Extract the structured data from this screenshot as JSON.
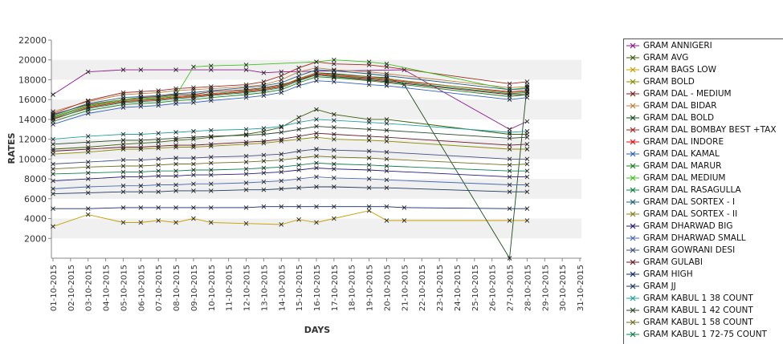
{
  "chart_data": {
    "type": "line",
    "title": "",
    "xlabel": "DAYS",
    "ylabel": "RATES",
    "ylim": [
      0,
      22000
    ],
    "y_ticks": [
      2000,
      4000,
      6000,
      8000,
      10000,
      12000,
      14000,
      16000,
      18000,
      20000,
      22000
    ],
    "y_tick_labels": [
      "2000",
      "4000",
      "6000",
      "8000",
      "10000",
      "12000",
      "14000",
      "16000",
      "18000",
      "20000",
      "22000"
    ],
    "grid": "alternating horizontal bands",
    "legend_position": "right",
    "categories": [
      "01-10-2015",
      "02-10-2015",
      "03-10-2015",
      "04-10-2015",
      "05-10-2015",
      "06-10-2015",
      "07-10-2015",
      "08-10-2015",
      "09-10-2015",
      "10-10-2015",
      "11-10-2015",
      "12-10-2015",
      "13-10-2015",
      "14-10-2015",
      "15-10-2015",
      "16-10-2015",
      "17-10-2015",
      "18-10-2015",
      "19-10-2015",
      "20-10-2015",
      "21-10-2015",
      "22-10-2015",
      "23-10-2015",
      "24-10-2015",
      "25-10-2015",
      "26-10-2015",
      "27-10-2015",
      "28-10-2015",
      "29-10-2015",
      "30-10-2015",
      "31-10-2015"
    ],
    "series": [
      {
        "name": "GRAM ANNIGERI",
        "color": "#8b1a8b",
        "values": [
          16500,
          null,
          18800,
          null,
          19000,
          19000,
          null,
          19000,
          null,
          19000,
          null,
          19000,
          18700,
          18800,
          null,
          null,
          null,
          null,
          null,
          null,
          19000,
          null,
          null,
          null,
          null,
          null,
          13000,
          13800,
          null,
          null,
          null
        ]
      },
      {
        "name": "GRAM AVG",
        "color": "#3a5f0b",
        "values": [
          11000,
          null,
          11200,
          null,
          11500,
          11600,
          11700,
          11900,
          12000,
          12200,
          null,
          12500,
          12800,
          13200,
          14200,
          15000,
          14500,
          null,
          14000,
          14000,
          null,
          null,
          null,
          null,
          null,
          null,
          12500,
          12500,
          null,
          null,
          null
        ]
      },
      {
        "name": "GRAM BAGS LOW",
        "color": "#c8a000",
        "values": [
          3200,
          null,
          4400,
          null,
          3600,
          3600,
          3800,
          3600,
          4000,
          3600,
          null,
          3500,
          null,
          3400,
          3900,
          3600,
          4000,
          null,
          4800,
          3800,
          3800,
          null,
          null,
          null,
          null,
          null,
          3800,
          3800,
          null,
          null,
          null
        ]
      },
      {
        "name": "GRAM BOLD",
        "color": "#8b8b00",
        "values": [
          10500,
          null,
          10700,
          null,
          11000,
          11000,
          11100,
          11200,
          11200,
          11300,
          null,
          11500,
          11600,
          11800,
          12000,
          12200,
          12000,
          null,
          11900,
          11800,
          null,
          null,
          null,
          null,
          null,
          null,
          11000,
          11000,
          null,
          null,
          null
        ]
      },
      {
        "name": "GRAM DAL - MEDIUM",
        "color": "#7a1f1f",
        "values": [
          14500,
          null,
          15500,
          null,
          16000,
          16200,
          16300,
          16500,
          16500,
          16800,
          null,
          17000,
          17200,
          17500,
          18000,
          18500,
          18300,
          null,
          18000,
          17800,
          null,
          null,
          null,
          null,
          null,
          null,
          16500,
          16500,
          null,
          null,
          null
        ]
      },
      {
        "name": "GRAM DAL BIDAR",
        "color": "#c08040",
        "values": [
          14800,
          null,
          15800,
          null,
          16500,
          16600,
          16700,
          16900,
          17000,
          17100,
          null,
          17300,
          17500,
          18000,
          18800,
          19200,
          19000,
          null,
          18800,
          18600,
          null,
          null,
          null,
          null,
          null,
          null,
          17200,
          17300,
          null,
          null,
          null
        ]
      },
      {
        "name": "GRAM DAL BOLD",
        "color": "#1a4d1a",
        "values": [
          14200,
          null,
          15300,
          null,
          15900,
          16000,
          16100,
          16300,
          16400,
          16600,
          null,
          16900,
          17100,
          17400,
          18100,
          18700,
          18600,
          null,
          18300,
          18200,
          17500,
          null,
          null,
          null,
          null,
          null,
          0,
          17500,
          null,
          null,
          null
        ]
      },
      {
        "name": "GRAM DAL BOMBAY BEST +TAX",
        "color": "#a0281e",
        "values": [
          14600,
          null,
          15900,
          null,
          16700,
          16800,
          16900,
          17100,
          17200,
          17300,
          null,
          17500,
          17800,
          18400,
          19200,
          19800,
          19600,
          null,
          19500,
          19300,
          null,
          null,
          null,
          null,
          null,
          null,
          17600,
          17800,
          null,
          null,
          null
        ]
      },
      {
        "name": "GRAM DAL INDORE",
        "color": "#e01010",
        "values": [
          14000,
          null,
          15200,
          null,
          15800,
          15900,
          16000,
          16200,
          16300,
          16500,
          null,
          16800,
          17000,
          17300,
          18000,
          18600,
          18400,
          null,
          18200,
          18000,
          null,
          null,
          null,
          null,
          null,
          null,
          16800,
          16900,
          null,
          null,
          null
        ]
      },
      {
        "name": "GRAM DAL KAMAL",
        "color": "#3060c0",
        "values": [
          13500,
          null,
          14600,
          null,
          15200,
          15300,
          15400,
          15600,
          15700,
          15900,
          null,
          16200,
          16400,
          16700,
          17400,
          17900,
          17800,
          null,
          17500,
          17400,
          null,
          null,
          null,
          null,
          null,
          null,
          16000,
          16200,
          null,
          null,
          null
        ]
      },
      {
        "name": "GRAM DAL MARUR",
        "color": "#208020",
        "values": [
          13800,
          null,
          14900,
          null,
          15500,
          15600,
          15700,
          15900,
          16000,
          16200,
          null,
          16500,
          16700,
          17000,
          17700,
          18300,
          18200,
          null,
          17900,
          17700,
          null,
          null,
          null,
          null,
          null,
          null,
          16300,
          16500,
          null,
          null,
          null
        ]
      },
      {
        "name": "GRAM DAL MEDIUM",
        "color": "#40c020",
        "values": [
          14300,
          null,
          15400,
          null,
          16000,
          16100,
          16200,
          16400,
          19300,
          19400,
          null,
          19500,
          null,
          null,
          null,
          19800,
          20000,
          null,
          19800,
          19600,
          null,
          null,
          null,
          null,
          null,
          null,
          17000,
          17200,
          null,
          null,
          null
        ]
      },
      {
        "name": "GRAM DAL RASAGULLA",
        "color": "#108040",
        "values": [
          14100,
          null,
          15100,
          null,
          15700,
          15800,
          15900,
          16100,
          16200,
          16400,
          null,
          16700,
          16900,
          17200,
          17900,
          18500,
          18300,
          null,
          18100,
          17900,
          null,
          null,
          null,
          null,
          null,
          null,
          16600,
          16700,
          null,
          null,
          null
        ]
      },
      {
        "name": "GRAM DAL SORTEX  - I",
        "color": "#206080",
        "values": [
          14400,
          null,
          15600,
          null,
          16200,
          16300,
          16400,
          16600,
          16700,
          16900,
          null,
          17200,
          17400,
          17700,
          18400,
          19000,
          18900,
          null,
          18600,
          18400,
          null,
          null,
          null,
          null,
          null,
          null,
          17000,
          17100,
          null,
          null,
          null
        ]
      },
      {
        "name": "GRAM DAL SORTEX - II",
        "color": "#808020",
        "values": [
          14200,
          null,
          15300,
          null,
          15900,
          16000,
          16100,
          16300,
          16400,
          16600,
          null,
          16900,
          17100,
          17400,
          18100,
          18700,
          18500,
          null,
          18300,
          18100,
          null,
          null,
          null,
          null,
          null,
          null,
          16700,
          16800,
          null,
          null,
          null
        ]
      },
      {
        "name": "GRAM DHARWAD BIG",
        "color": "#2a1a7a",
        "values": [
          7800,
          null,
          8000,
          null,
          8200,
          8200,
          8300,
          8300,
          8400,
          8400,
          null,
          8500,
          8600,
          8700,
          8900,
          9100,
          9000,
          null,
          8900,
          8800,
          null,
          null,
          null,
          null,
          null,
          null,
          8200,
          8200,
          null,
          null,
          null
        ]
      },
      {
        "name": "GRAM DHARWAD SMALL",
        "color": "#4a6ab0",
        "values": [
          7000,
          null,
          7200,
          null,
          7300,
          7300,
          7400,
          7400,
          7500,
          7500,
          null,
          7600,
          7700,
          7800,
          8000,
          8200,
          8100,
          null,
          8000,
          7900,
          null,
          null,
          null,
          null,
          null,
          null,
          7400,
          7400,
          null,
          null,
          null
        ]
      },
      {
        "name": "GRAM GOWRANI DESI",
        "color": "#405080",
        "values": [
          9500,
          null,
          9700,
          null,
          9900,
          9900,
          10000,
          10100,
          10100,
          10200,
          null,
          10300,
          10400,
          10500,
          10800,
          11000,
          10900,
          null,
          10800,
          10700,
          null,
          null,
          null,
          null,
          null,
          null,
          10000,
          10000,
          null,
          null,
          null
        ]
      },
      {
        "name": "GRAM GULABI",
        "color": "#6a1a2a",
        "values": [
          10800,
          null,
          11000,
          null,
          11200,
          11200,
          11300,
          11400,
          11400,
          11500,
          null,
          11700,
          11800,
          12000,
          12300,
          12600,
          12500,
          null,
          12300,
          12200,
          null,
          null,
          null,
          null,
          null,
          null,
          11400,
          11500,
          null,
          null,
          null
        ]
      },
      {
        "name": "GRAM HIGH",
        "color": "#102a6a",
        "values": [
          5000,
          null,
          5000,
          null,
          5100,
          5100,
          5100,
          5100,
          5100,
          5100,
          null,
          5100,
          5200,
          5200,
          5200,
          5200,
          5200,
          null,
          5200,
          5200,
          5100,
          null,
          null,
          null,
          null,
          null,
          5000,
          5000,
          null,
          null,
          null
        ]
      },
      {
        "name": "GRAM JJ",
        "color": "#203a5a",
        "values": [
          6500,
          null,
          6600,
          null,
          6700,
          6700,
          6700,
          6800,
          6800,
          6800,
          null,
          6900,
          6900,
          7000,
          7100,
          7200,
          7200,
          null,
          7100,
          7100,
          null,
          null,
          null,
          null,
          null,
          null,
          6700,
          6700,
          null,
          null,
          null
        ]
      },
      {
        "name": "GRAM KABUL 1 38 COUNT",
        "color": "#20a0a0",
        "values": [
          12000,
          null,
          12300,
          null,
          12500,
          12500,
          12600,
          12700,
          12800,
          12900,
          null,
          13000,
          13100,
          13300,
          13700,
          14000,
          13900,
          null,
          13700,
          13600,
          null,
          null,
          null,
          null,
          null,
          null,
          12700,
          12800,
          null,
          null,
          null
        ]
      },
      {
        "name": "GRAM KABUL 1 42 COUNT",
        "color": "#2a4a2a",
        "values": [
          11500,
          null,
          11700,
          null,
          11900,
          11900,
          12000,
          12100,
          12200,
          12300,
          null,
          12400,
          12500,
          12700,
          13000,
          13300,
          13200,
          null,
          13000,
          12900,
          null,
          null,
          null,
          null,
          null,
          null,
          12100,
          12200,
          null,
          null,
          null
        ]
      },
      {
        "name": "GRAM KABUL 1 58 COUNT",
        "color": "#707020",
        "values": [
          9000,
          null,
          9200,
          null,
          9300,
          9300,
          9400,
          9500,
          9500,
          9600,
          null,
          9700,
          9800,
          9900,
          10100,
          10300,
          10200,
          null,
          10100,
          10000,
          null,
          null,
          null,
          null,
          null,
          null,
          9400,
          9500,
          null,
          null,
          null
        ]
      },
      {
        "name": "GRAM KABUL 1 72-75 COUNT",
        "color": "#108050",
        "values": [
          8500,
          null,
          8600,
          null,
          8700,
          8700,
          8800,
          8800,
          8900,
          8900,
          null,
          9000,
          9100,
          9200,
          9400,
          9600,
          9500,
          null,
          9400,
          9300,
          null,
          null,
          null,
          null,
          null,
          null,
          8800,
          8800,
          null,
          null,
          null
        ]
      }
    ]
  }
}
